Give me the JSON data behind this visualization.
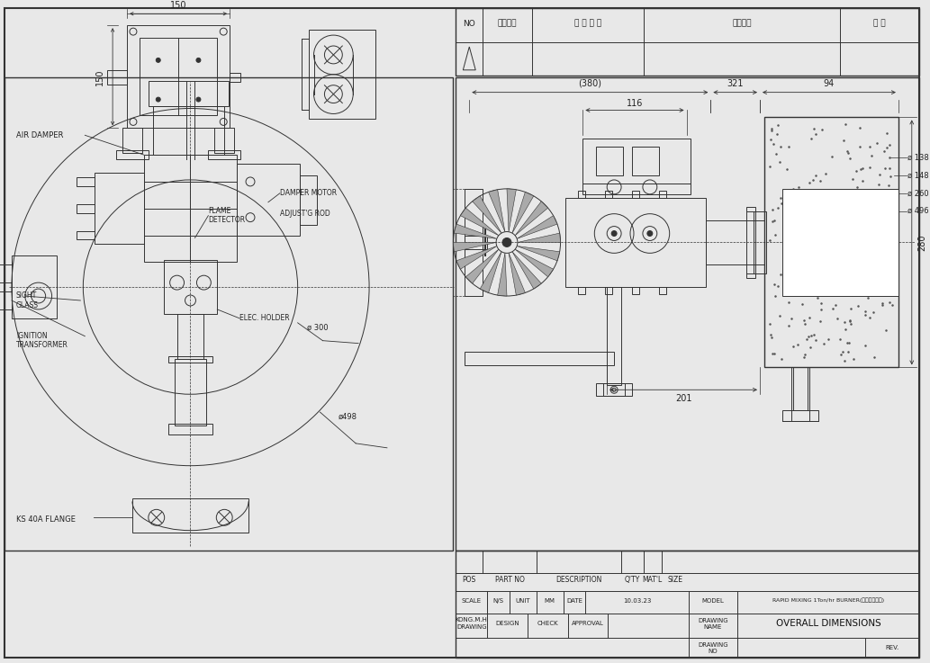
{
  "bg_color": "#e8e8e8",
  "line_color": "#333333",
  "dimensions": {
    "top_width": "150",
    "top_height": "150",
    "side_380": "(380)",
    "side_321": "321",
    "side_94": "94",
    "side_116": "116",
    "side_280": "280",
    "side_201": "201",
    "dia_498": "ø498",
    "dia_300": "ø 300",
    "dia_138": "ø 138",
    "dia_148": "ø 148",
    "dia_260": "ø 260",
    "dia_496": "ø 496"
  },
  "labels": {
    "air_damper": "AIR DAMPER",
    "flame_detector": "FLAME\nDETECTOR",
    "damper_motor": "DAMPER MOTOR",
    "adjusting_rod": "ADJUST'G ROD",
    "ignition_transformer": "IGNITION\nTRANSFORMER",
    "sight_glass": "SIGHT\nGLASS",
    "elec_holder": "ELEC. HOLDER",
    "ks_flange": "KS 40A FLANGE"
  },
  "title_block": {
    "pos": "POS",
    "part_no": "PART NO",
    "description": "DESCRIPTION",
    "qty": "Q'TY",
    "matl": "MAT'L",
    "size": "SIZE",
    "scale_val": "N/S",
    "unit_val": "MM",
    "date_val": "10.03.23",
    "model_val": "RAPID MIXING 1Ton/hr BURNER(관군보일러용)",
    "drawn": "KONG.M.H",
    "drawing": "DRAWING",
    "design": "DESIGN",
    "check": "CHECK",
    "approval": "APPROVAL",
    "drawing_name": "OVERALL DIMENSIONS",
    "drawing_no": "DRAWING\nNO",
    "rev": "REV.",
    "scale": "SCALE",
    "unit": "UNIT",
    "date": "DATE",
    "model": "MODEL",
    "drawing_name_label": "DRAWING\nNAME"
  },
  "revision_table": {
    "headers": [
      "NO",
      "변경날짜",
      "변 경 시 항",
      "변경시유",
      "확 인"
    ]
  }
}
